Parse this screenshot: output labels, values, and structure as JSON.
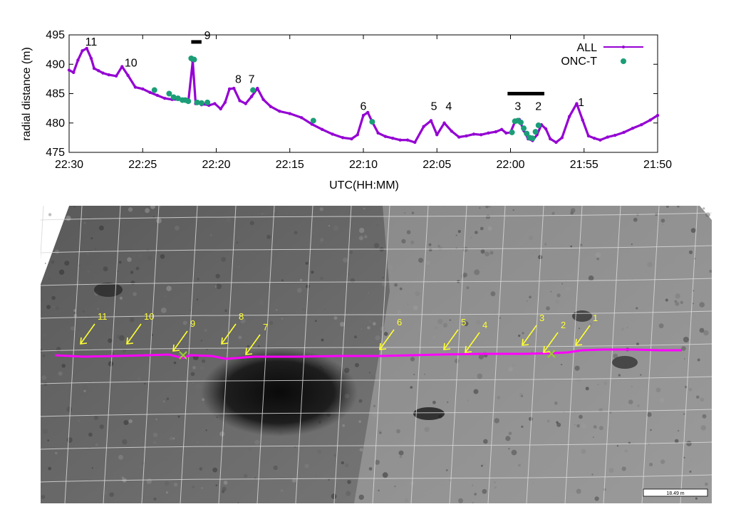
{
  "colors": {
    "all_series": "#9400d3",
    "onc_series": "#1b9e77",
    "track": "#ff00ff",
    "marker": "#ffff33",
    "grid": "#d8d8d8",
    "surface": "#7a7a7a"
  },
  "chart_data": {
    "type": "scatter",
    "xlabel": "UTC(HH:MM)",
    "ylabel": "radial distance (m)",
    "x_axis_reversed": true,
    "x_ticks": [
      "22:30",
      "22:25",
      "22:20",
      "22:15",
      "22:10",
      "22:05",
      "22:00",
      "21:55",
      "21:50"
    ],
    "x_tick_minutes": [
      0,
      5,
      10,
      15,
      20,
      25,
      30,
      35,
      40
    ],
    "xlim_minutes_before_2230": [
      0,
      40
    ],
    "y_ticks": [
      "475",
      "480",
      "485",
      "490",
      "495"
    ],
    "ylim": [
      475,
      495
    ],
    "legend": {
      "position": "top-right",
      "entries": [
        {
          "label": "ALL",
          "series": "ALL"
        },
        {
          "label": "ONC-T",
          "series": "ONC-T"
        }
      ]
    },
    "series": [
      {
        "name": "ALL",
        "style": "line+points",
        "x": [
          0.0,
          0.3,
          0.6,
          0.9,
          1.2,
          1.5,
          1.7,
          2.0,
          2.3,
          2.7,
          3.2,
          3.6,
          4.0,
          4.5,
          5.0,
          5.5,
          6.0,
          6.5,
          7.0,
          7.6,
          8.1,
          8.4,
          8.6,
          8.8,
          9.0,
          9.2,
          9.5,
          9.9,
          10.3,
          10.6,
          10.9,
          11.2,
          11.6,
          12.0,
          12.4,
          12.8,
          13.2,
          13.7,
          14.3,
          15.0,
          15.8,
          16.5,
          17.2,
          17.9,
          18.6,
          19.2,
          19.6,
          20.0,
          20.3,
          20.6,
          21.0,
          21.5,
          22.0,
          22.5,
          23.0,
          23.5,
          24.1,
          24.6,
          25.0,
          25.5,
          26.0,
          26.5,
          27.0,
          27.5,
          28.0,
          28.5,
          29.0,
          29.4,
          29.7,
          30.0,
          30.3,
          30.6,
          30.9,
          31.2,
          31.5,
          31.8,
          32.1,
          32.4,
          32.7,
          33.1,
          33.5,
          34.0,
          34.5,
          34.9,
          35.3,
          35.7,
          36.1,
          36.6,
          37.1,
          37.7,
          38.3,
          38.9,
          39.5,
          40.0
        ],
        "y": [
          489.0,
          488.6,
          490.7,
          492.3,
          492.7,
          491.0,
          489.3,
          488.9,
          488.5,
          488.2,
          488.0,
          489.6,
          488.1,
          486.1,
          485.8,
          485.2,
          484.7,
          484.2,
          484.0,
          484.0,
          483.6,
          490.5,
          483.3,
          483.4,
          483.1,
          483.2,
          483.0,
          483.3,
          482.4,
          483.5,
          485.8,
          485.9,
          483.8,
          483.3,
          484.5,
          485.9,
          484.0,
          482.8,
          482.0,
          481.6,
          480.9,
          479.8,
          478.9,
          478.1,
          477.5,
          477.3,
          478.0,
          481.3,
          481.8,
          480.2,
          478.3,
          477.7,
          477.4,
          477.1,
          477.1,
          476.7,
          479.4,
          480.4,
          478.0,
          480.0,
          478.6,
          477.6,
          477.8,
          478.1,
          478.0,
          478.3,
          478.5,
          478.9,
          478.3,
          478.4,
          480.2,
          480.6,
          478.7,
          477.3,
          477.0,
          478.0,
          479.7,
          479.0,
          477.3,
          476.7,
          477.5,
          481.1,
          483.3,
          480.5,
          477.8,
          477.4,
          477.1,
          477.6,
          477.9,
          478.4,
          479.1,
          479.7,
          480.5,
          481.3
        ]
      },
      {
        "name": "ONC-T",
        "style": "points",
        "x": [
          5.8,
          6.8,
          7.1,
          7.4,
          7.7,
          7.9,
          8.1,
          8.3,
          8.5,
          8.7,
          9.0,
          9.4,
          12.5,
          16.6,
          20.6,
          30.1,
          30.3,
          30.5,
          30.7,
          30.9,
          31.1,
          31.3,
          31.5,
          31.7,
          31.9
        ],
        "y": [
          485.6,
          485.0,
          484.4,
          484.2,
          483.9,
          483.9,
          483.7,
          491.0,
          490.8,
          483.5,
          483.4,
          483.5,
          485.6,
          480.4,
          480.2,
          478.4,
          480.3,
          480.4,
          480.1,
          479.1,
          478.2,
          477.5,
          477.4,
          478.5,
          479.6
        ]
      }
    ],
    "annotations": [
      {
        "label": "11",
        "x": 1.5,
        "y": 493.2
      },
      {
        "label": "10",
        "x": 4.2,
        "y": 489.6
      },
      {
        "label": "9",
        "x": 9.4,
        "y": 494.3
      },
      {
        "label": "8",
        "x": 11.5,
        "y": 486.8
      },
      {
        "label": "7",
        "x": 12.4,
        "y": 486.8
      },
      {
        "label": "6",
        "x": 20.0,
        "y": 482.2
      },
      {
        "label": "5",
        "x": 24.8,
        "y": 482.2
      },
      {
        "label": "4",
        "x": 25.8,
        "y": 482.2
      },
      {
        "label": "3",
        "x": 30.5,
        "y": 482.2
      },
      {
        "label": "2",
        "x": 31.9,
        "y": 482.2
      },
      {
        "label": "1",
        "x": 34.8,
        "y": 482.9
      }
    ],
    "bars": [
      {
        "x_start": 8.3,
        "x_end": 9.0,
        "y": 493.8
      },
      {
        "x_start": 29.8,
        "x_end": 32.3,
        "y": 485.0
      }
    ]
  },
  "map": {
    "scale_label": "18.49 m",
    "markers": [
      "11",
      "10",
      "9",
      "8",
      "7",
      "6",
      "5",
      "4",
      "3",
      "2",
      "1"
    ]
  }
}
